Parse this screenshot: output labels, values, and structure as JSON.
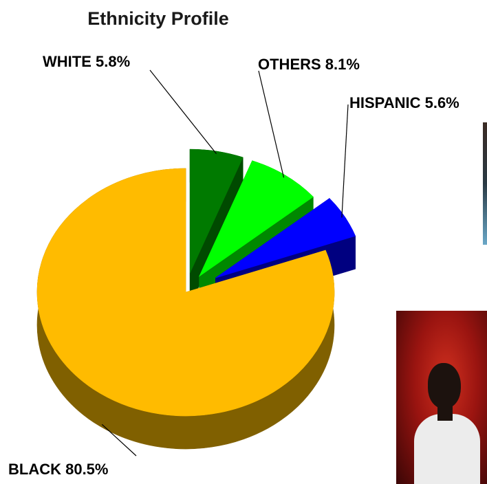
{
  "chart_data": {
    "type": "pie",
    "title": "Ethnicity Profile",
    "slices": [
      {
        "label": "BLACK 80.5%",
        "value": 80.5,
        "color": "#FFBB00",
        "side_color": "#806000",
        "exploded": false
      },
      {
        "label": "WHITE 5.8%",
        "value": 5.8,
        "color": "#007A00",
        "side_color": "#004A00",
        "exploded": true
      },
      {
        "label": "OTHERS 8.1%",
        "value": 8.1,
        "color": "#00FF00",
        "side_color": "#008800",
        "exploded": true
      },
      {
        "label": "HISPANIC 5.6%",
        "value": 5.6,
        "color": "#0000FF",
        "side_color": "#000080",
        "exploded": true
      }
    ],
    "style": "3d-exploded",
    "legend": "none"
  },
  "images": [
    {
      "name": "partial-photo",
      "description": "cropped photograph at right edge"
    },
    {
      "name": "portrait-photo",
      "description": "profile of a man against a red background"
    }
  ]
}
